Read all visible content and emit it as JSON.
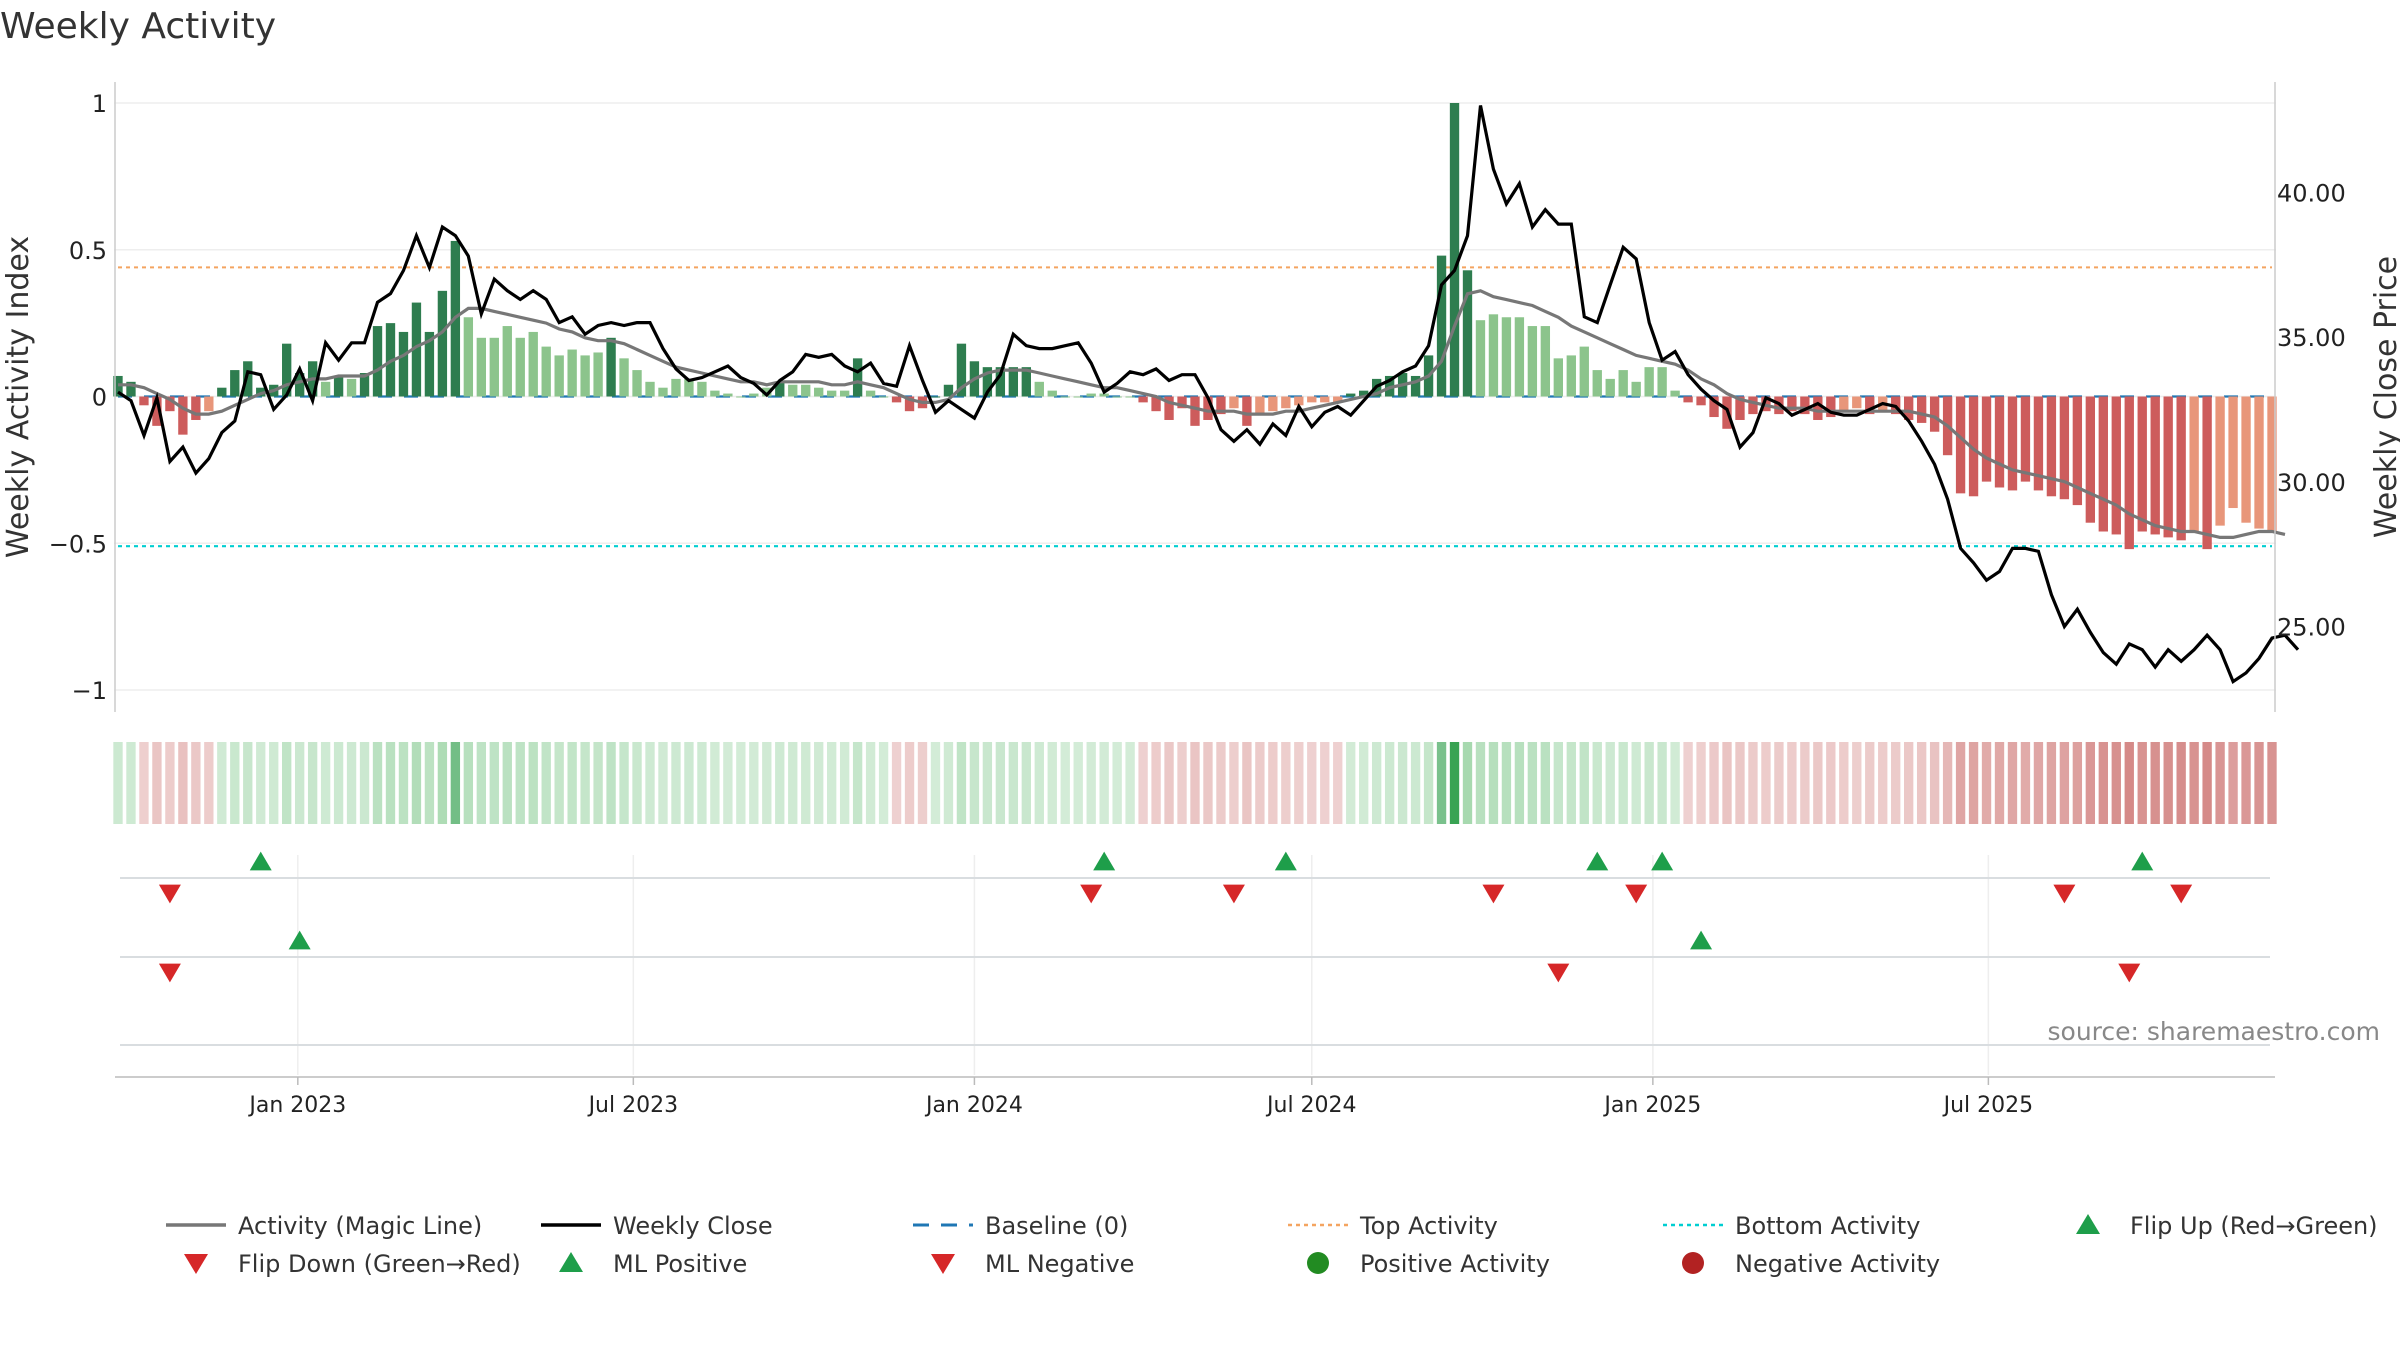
{
  "title": "Weekly Activity",
  "source": "source: sharemaestro.com",
  "y_left_label": "Weekly Activity Index",
  "y_right_label": "Weekly Close Price",
  "y_left_ticks": [
    "1",
    "0.5",
    "0",
    "−0.5",
    "−1"
  ],
  "y_right_ticks": [
    "40.00",
    "35.00",
    "30.00",
    "25.00"
  ],
  "x_ticks": [
    "Jan 2023",
    "Jul 2023",
    "Jan 2024",
    "Jul 2024",
    "Jan 2025",
    "Jul 2025"
  ],
  "colors": {
    "pos_dark": "#2e7d4f",
    "pos_light": "#8cc48c",
    "neg_dark": "#cd5c5c",
    "neg_light": "#e8967a",
    "magic_line": "#777777",
    "close": "#000000",
    "baseline": "#1f77b4",
    "top": "#f4a460",
    "bottom": "#00ced1",
    "up_marker": "#1e9e4a",
    "down_marker": "#d62728"
  },
  "legend": [
    {
      "label": "Activity (Magic Line)",
      "type": "line",
      "color": "#777777"
    },
    {
      "label": "Weekly Close",
      "type": "line",
      "color": "#000000"
    },
    {
      "label": "Baseline (0)",
      "type": "dash",
      "color": "#1f77b4"
    },
    {
      "label": "Top Activity",
      "type": "dot",
      "color": "#f4a460"
    },
    {
      "label": "Bottom Activity",
      "type": "dot",
      "color": "#00ced1"
    },
    {
      "label": "Flip Up (Red→Green)",
      "type": "up",
      "color": "#1e9e4a"
    },
    {
      "label": "Flip Down (Green→Red)",
      "type": "down",
      "color": "#d62728"
    },
    {
      "label": "ML Positive",
      "type": "up",
      "color": "#1e9e4a"
    },
    {
      "label": "ML Negative",
      "type": "down",
      "color": "#d62728"
    },
    {
      "label": "Positive Activity",
      "type": "circle",
      "color": "#228b22"
    },
    {
      "label": "Negative Activity",
      "type": "circle",
      "color": "#b22222"
    }
  ],
  "chart_data": {
    "type": "bar",
    "start_date": "2022-09-26",
    "interval": "weekly",
    "ylim_left": [
      -1.1,
      1.1
    ],
    "ylim_right": [
      22.0,
      44.0
    ],
    "top_activity": 0.44,
    "bottom_activity": -0.51,
    "baseline": 0,
    "activity": [
      0.07,
      0.05,
      -0.03,
      -0.1,
      -0.05,
      -0.13,
      -0.08,
      -0.05,
      0.03,
      0.09,
      0.12,
      0.03,
      0.04,
      0.18,
      0.08,
      0.12,
      0.05,
      0.07,
      0.06,
      0.08,
      0.24,
      0.25,
      0.22,
      0.32,
      0.22,
      0.36,
      0.53,
      0.27,
      0.2,
      0.2,
      0.24,
      0.2,
      0.22,
      0.17,
      0.14,
      0.16,
      0.14,
      0.15,
      0.2,
      0.13,
      0.09,
      0.05,
      0.03,
      0.06,
      0.06,
      0.05,
      0.02,
      0.01,
      0.0,
      0.01,
      0.03,
      0.05,
      0.04,
      0.04,
      0.03,
      0.02,
      0.02,
      0.13,
      0.02,
      0.0,
      -0.02,
      -0.05,
      -0.04,
      0.0,
      0.04,
      0.18,
      0.12,
      0.1,
      0.1,
      0.1,
      0.1,
      0.05,
      0.02,
      0.0,
      0.0,
      0.01,
      0.01,
      0.0,
      0.0,
      -0.02,
      -0.05,
      -0.08,
      -0.04,
      -0.1,
      -0.08,
      -0.06,
      -0.04,
      -0.1,
      -0.06,
      -0.05,
      -0.04,
      -0.03,
      -0.02,
      -0.02,
      -0.02,
      0.01,
      0.02,
      0.06,
      0.07,
      0.08,
      0.07,
      0.14,
      0.48,
      1.0,
      0.43,
      0.26,
      0.28,
      0.27,
      0.27,
      0.24,
      0.24,
      0.13,
      0.14,
      0.17,
      0.09,
      0.06,
      0.09,
      0.05,
      0.1,
      0.1,
      0.02,
      -0.02,
      -0.03,
      -0.07,
      -0.11,
      -0.08,
      -0.06,
      -0.05,
      -0.06,
      -0.05,
      -0.06,
      -0.08,
      -0.07,
      -0.05,
      -0.04,
      -0.06,
      -0.05,
      -0.06,
      -0.08,
      -0.09,
      -0.12,
      -0.2,
      -0.33,
      -0.34,
      -0.29,
      -0.31,
      -0.32,
      -0.29,
      -0.32,
      -0.34,
      -0.35,
      -0.37,
      -0.43,
      -0.46,
      -0.47,
      -0.52,
      -0.46,
      -0.47,
      -0.48,
      -0.49,
      -0.46,
      -0.52,
      -0.44,
      -0.38,
      -0.43,
      -0.45,
      -0.46
    ],
    "magic_line": [
      0.04,
      0.04,
      0.03,
      0.01,
      -0.01,
      -0.04,
      -0.06,
      -0.06,
      -0.05,
      -0.03,
      -0.01,
      0.01,
      0.02,
      0.04,
      0.05,
      0.06,
      0.06,
      0.07,
      0.07,
      0.07,
      0.09,
      0.12,
      0.14,
      0.17,
      0.19,
      0.22,
      0.27,
      0.3,
      0.3,
      0.29,
      0.28,
      0.27,
      0.26,
      0.25,
      0.23,
      0.22,
      0.2,
      0.19,
      0.19,
      0.18,
      0.16,
      0.14,
      0.12,
      0.1,
      0.09,
      0.08,
      0.07,
      0.06,
      0.05,
      0.05,
      0.04,
      0.05,
      0.05,
      0.05,
      0.05,
      0.04,
      0.04,
      0.05,
      0.04,
      0.03,
      0.01,
      -0.01,
      -0.02,
      -0.02,
      -0.01,
      0.03,
      0.06,
      0.08,
      0.09,
      0.09,
      0.09,
      0.08,
      0.07,
      0.06,
      0.05,
      0.04,
      0.03,
      0.03,
      0.02,
      0.01,
      0.0,
      -0.02,
      -0.03,
      -0.04,
      -0.05,
      -0.05,
      -0.05,
      -0.06,
      -0.06,
      -0.06,
      -0.05,
      -0.05,
      -0.04,
      -0.03,
      -0.02,
      -0.01,
      0.0,
      0.01,
      0.03,
      0.04,
      0.05,
      0.07,
      0.12,
      0.24,
      0.35,
      0.36,
      0.34,
      0.33,
      0.32,
      0.31,
      0.29,
      0.27,
      0.24,
      0.22,
      0.2,
      0.18,
      0.16,
      0.14,
      0.13,
      0.12,
      0.11,
      0.09,
      0.06,
      0.04,
      0.01,
      -0.01,
      -0.02,
      -0.03,
      -0.04,
      -0.04,
      -0.04,
      -0.05,
      -0.05,
      -0.05,
      -0.05,
      -0.05,
      -0.05,
      -0.05,
      -0.05,
      -0.06,
      -0.07,
      -0.1,
      -0.14,
      -0.18,
      -0.21,
      -0.23,
      -0.25,
      -0.26,
      -0.27,
      -0.28,
      -0.29,
      -0.31,
      -0.33,
      -0.35,
      -0.37,
      -0.4,
      -0.42,
      -0.44,
      -0.45,
      -0.46,
      -0.46,
      -0.47,
      -0.48,
      -0.48,
      -0.47,
      -0.46,
      -0.46,
      -0.47
    ],
    "weekly_close": [
      33.1,
      32.8,
      31.6,
      32.9,
      30.7,
      31.2,
      30.3,
      30.8,
      31.7,
      32.1,
      33.8,
      33.7,
      32.5,
      33.0,
      33.9,
      32.8,
      34.8,
      34.2,
      34.8,
      34.8,
      36.2,
      36.5,
      37.3,
      38.5,
      37.4,
      38.8,
      38.5,
      37.8,
      35.8,
      37.0,
      36.6,
      36.3,
      36.6,
      36.3,
      35.5,
      35.7,
      35.1,
      35.4,
      35.5,
      35.4,
      35.5,
      35.5,
      34.6,
      33.9,
      33.5,
      33.6,
      33.8,
      34.0,
      33.6,
      33.4,
      33.0,
      33.5,
      33.8,
      34.4,
      34.3,
      34.4,
      34.0,
      33.8,
      34.1,
      33.4,
      33.3,
      34.7,
      33.5,
      32.4,
      32.8,
      32.5,
      32.2,
      33.1,
      33.7,
      35.1,
      34.7,
      34.6,
      34.6,
      34.7,
      34.8,
      34.1,
      33.1,
      33.4,
      33.8,
      33.7,
      33.9,
      33.5,
      33.7,
      33.7,
      32.9,
      31.8,
      31.4,
      31.8,
      31.3,
      32.0,
      31.6,
      32.6,
      31.9,
      32.4,
      32.6,
      32.3,
      32.8,
      33.3,
      33.5,
      33.8,
      34.0,
      34.7,
      36.8,
      37.3,
      38.5,
      43.0,
      40.8,
      39.6,
      40.3,
      38.8,
      39.4,
      38.9,
      38.9,
      35.7,
      35.5,
      36.8,
      38.1,
      37.7,
      35.5,
      34.2,
      34.5,
      33.7,
      33.2,
      32.8,
      32.5,
      31.2,
      31.7,
      32.9,
      32.7,
      32.3,
      32.5,
      32.7,
      32.4,
      32.3,
      32.3,
      32.5,
      32.7,
      32.6,
      32.1,
      31.4,
      30.6,
      29.4,
      27.7,
      27.2,
      26.6,
      26.9,
      27.7,
      27.7,
      27.6,
      26.1,
      25.0,
      25.6,
      24.8,
      24.1,
      23.7,
      24.4,
      24.2,
      23.6,
      24.2,
      23.8,
      24.2,
      24.7,
      24.2,
      23.1,
      23.4,
      23.9,
      24.6,
      24.7,
      24.2
    ],
    "flip_up_weeks": [
      11,
      76,
      90,
      114,
      119,
      156
    ],
    "flip_down_weeks": [
      4,
      75,
      86,
      106,
      117,
      150,
      159
    ],
    "ml_positive_weeks": [
      14,
      122
    ],
    "ml_negative_weeks": [
      4,
      111,
      155
    ]
  }
}
